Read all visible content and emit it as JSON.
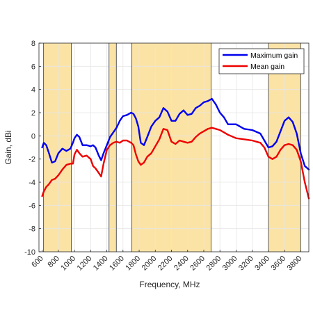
{
  "chart_data": {
    "type": "line",
    "xlabel": "Frequency, MHz",
    "ylabel": "Gain, dBi",
    "xlim": [
      560,
      3900
    ],
    "ylim": [
      -10,
      8
    ],
    "x_ticks": [
      600,
      800,
      1000,
      1200,
      1400,
      1600,
      1800,
      2000,
      2200,
      2400,
      2600,
      2800,
      3000,
      3200,
      3400,
      3600,
      3800
    ],
    "y_ticks": [
      -10,
      -8,
      -6,
      -4,
      -2,
      0,
      2,
      4,
      6,
      8
    ],
    "grid": true,
    "legend_position": "top-right",
    "highlight_bands": [
      [
        617,
        960
      ],
      [
        1427,
        1518
      ],
      [
        1710,
        2690
      ],
      [
        3400,
        3800
      ]
    ],
    "colors": {
      "band_fill": "#fbe3a6",
      "band_edge": "#4a4a4a",
      "max_series": "#0000ee",
      "mean_series": "#ee0000",
      "grid": "#e6e6e6",
      "axis": "#262626"
    },
    "series": [
      {
        "name": "Maximum gain",
        "color": "#0000ee",
        "x": [
          600,
          620,
          650,
          680,
          720,
          760,
          800,
          850,
          900,
          950,
          980,
          1000,
          1030,
          1060,
          1100,
          1150,
          1200,
          1230,
          1260,
          1300,
          1330,
          1360,
          1400,
          1440,
          1480,
          1520,
          1560,
          1600,
          1650,
          1700,
          1730,
          1760,
          1790,
          1820,
          1860,
          1900,
          1950,
          2000,
          2050,
          2100,
          2150,
          2200,
          2250,
          2300,
          2350,
          2400,
          2450,
          2500,
          2550,
          2600,
          2650,
          2700,
          2750,
          2800,
          2850,
          2900,
          3000,
          3100,
          3200,
          3300,
          3350,
          3400,
          3450,
          3500,
          3550,
          3600,
          3650,
          3700,
          3750,
          3800,
          3850,
          3900
        ],
        "y": [
          -1.0,
          -0.6,
          -0.8,
          -1.4,
          -2.3,
          -2.2,
          -1.5,
          -1.1,
          -1.3,
          -1.1,
          -0.6,
          -0.2,
          0.1,
          -0.1,
          -0.8,
          -0.8,
          -0.9,
          -0.8,
          -1.0,
          -1.7,
          -2.1,
          -1.5,
          -0.8,
          -0.1,
          0.3,
          0.7,
          1.3,
          1.7,
          1.8,
          2.0,
          1.9,
          1.5,
          0.8,
          -0.6,
          -0.8,
          -0.1,
          0.8,
          1.3,
          1.6,
          2.4,
          2.1,
          1.3,
          1.3,
          1.9,
          2.2,
          1.8,
          1.9,
          2.4,
          2.6,
          2.9,
          3.0,
          3.2,
          2.7,
          2.0,
          1.6,
          1.0,
          1.0,
          0.6,
          0.5,
          0.2,
          -0.4,
          -1.0,
          -0.9,
          -0.5,
          0.4,
          1.3,
          1.6,
          1.2,
          0.2,
          -1.5,
          -2.6,
          -2.9
        ]
      },
      {
        "name": "Mean gain",
        "color": "#ee0000",
        "x": [
          600,
          620,
          650,
          680,
          720,
          760,
          800,
          850,
          900,
          950,
          980,
          1000,
          1030,
          1060,
          1100,
          1150,
          1200,
          1230,
          1260,
          1300,
          1330,
          1360,
          1400,
          1440,
          1480,
          1520,
          1560,
          1600,
          1650,
          1700,
          1730,
          1760,
          1790,
          1820,
          1860,
          1900,
          1950,
          2000,
          2050,
          2100,
          2150,
          2200,
          2250,
          2300,
          2350,
          2400,
          2450,
          2500,
          2550,
          2600,
          2650,
          2700,
          2750,
          2800,
          2850,
          2900,
          3000,
          3100,
          3200,
          3300,
          3350,
          3400,
          3450,
          3500,
          3550,
          3600,
          3650,
          3700,
          3750,
          3800,
          3850,
          3900
        ],
        "y": [
          -5.2,
          -4.8,
          -4.4,
          -4.2,
          -3.8,
          -3.7,
          -3.4,
          -2.9,
          -2.5,
          -2.4,
          -2.4,
          -1.6,
          -1.2,
          -1.5,
          -1.8,
          -1.7,
          -2.0,
          -2.6,
          -2.8,
          -3.2,
          -3.5,
          -2.4,
          -1.2,
          -0.8,
          -0.6,
          -0.5,
          -0.6,
          -0.4,
          -0.4,
          -0.6,
          -0.8,
          -1.6,
          -2.2,
          -2.5,
          -2.3,
          -1.8,
          -1.5,
          -0.9,
          -0.3,
          0.6,
          0.5,
          -0.5,
          -0.7,
          -0.4,
          -0.5,
          -0.6,
          -0.5,
          -0.1,
          0.2,
          0.4,
          0.6,
          0.7,
          0.6,
          0.5,
          0.3,
          0.1,
          -0.2,
          -0.3,
          -0.4,
          -0.6,
          -1.0,
          -1.8,
          -2.0,
          -1.8,
          -1.2,
          -0.8,
          -0.7,
          -0.8,
          -1.2,
          -2.2,
          -4.0,
          -5.4
        ]
      }
    ]
  }
}
